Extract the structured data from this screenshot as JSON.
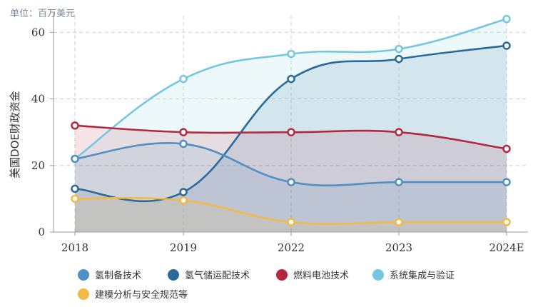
{
  "unit_label": "单位：百万美元",
  "chart_data": {
    "type": "area",
    "title": "",
    "xlabel": "",
    "ylabel": "美国DOE财政资金",
    "categories": [
      "2018",
      "2019",
      "2022",
      "2023",
      "2024E"
    ],
    "ylim": [
      0,
      65
    ],
    "yticks": [
      0,
      20,
      40,
      60
    ],
    "grid": true,
    "legend_position": "bottom",
    "series": [
      {
        "name": "系统集成与验证",
        "color": "#74c7e0",
        "values": [
          22,
          46,
          53.5,
          55,
          64
        ]
      },
      {
        "name": "氢气储运配技术",
        "color": "#2a6a9a",
        "values": [
          13,
          12,
          46,
          52,
          56
        ]
      },
      {
        "name": "燃料电池技术",
        "color": "#b3283f",
        "values": [
          32,
          30,
          30,
          30,
          25
        ]
      },
      {
        "name": "氢制备技术",
        "color": "#4f8fc4",
        "values": [
          22,
          26.5,
          15,
          15,
          15
        ]
      },
      {
        "name": "建模分析与安全规范等",
        "color": "#f3b948",
        "values": [
          10,
          9.5,
          3,
          3,
          3
        ]
      }
    ],
    "legend_order": [
      "氢制备技术",
      "氢气储运配技术",
      "燃料电池技术",
      "系统集成与验证",
      "建模分析与安全规范等"
    ]
  }
}
